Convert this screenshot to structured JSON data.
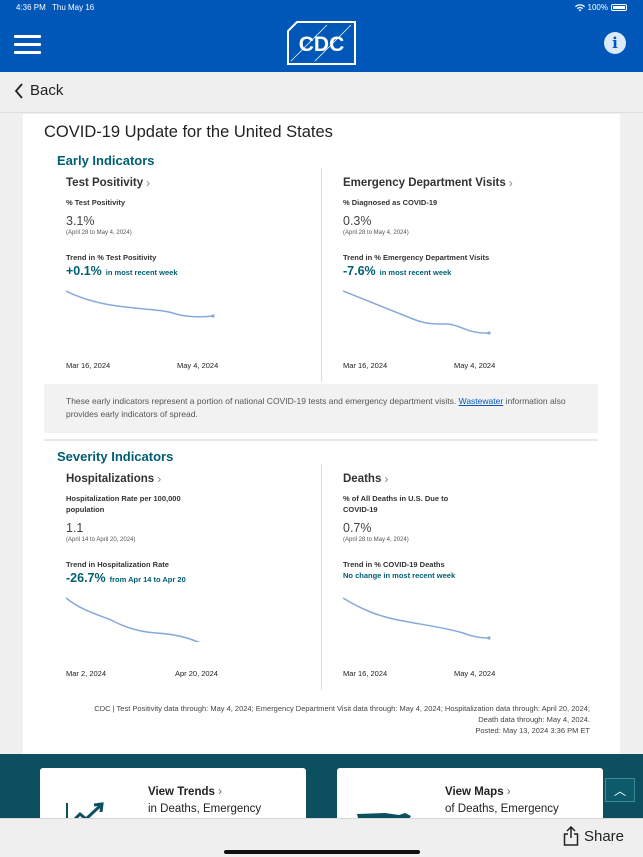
{
  "status": {
    "time": "4:36 PM",
    "date": "Thu May 16",
    "battery": "100%"
  },
  "header": {
    "logo_text": "CDC"
  },
  "nav": {
    "back_label": "Back"
  },
  "page": {
    "title": "COVID-19 Update for the United States"
  },
  "early": {
    "title": "Early Indicators",
    "test_positivity": {
      "title": "Test Positivity",
      "metric_label": "% Test Positivity",
      "value": "3.1%",
      "date_range": "(April 28 to May 4, 2024)",
      "trend_label": "Trend in % Test Positivity",
      "trend_value": "+0.1%",
      "trend_note": "in most recent week",
      "axis_start": "Mar 16, 2024",
      "axis_end": "May 4, 2024"
    },
    "ed_visits": {
      "title": "Emergency Department Visits",
      "metric_label": "% Diagnosed as COVID-19",
      "value": "0.3%",
      "date_range": "(April 28 to May 4, 2024)",
      "trend_label": "Trend in % Emergency Department Visits",
      "trend_value": "-7.6%",
      "trend_note": "in most recent week",
      "axis_start": "Mar 16, 2024",
      "axis_end": "May 4, 2024"
    },
    "note_text": "These early indicators represent a portion of national COVID-19 tests and emergency department visits.",
    "note_link": "Wastewater",
    "note_text_2": "information also provides early indicators of spread."
  },
  "severity": {
    "title": "Severity Indicators",
    "hospitalizations": {
      "title": "Hospitalizations",
      "metric_label": "Hospitalization Rate per 100,000 population",
      "value": "1.1",
      "date_range": "(April 14 to April 20, 2024)",
      "trend_label": "Trend in Hospitalization Rate",
      "trend_value": "-26.7%",
      "trend_note": "from Apr 14 to Apr 20",
      "axis_start": "Mar 2, 2024",
      "axis_end": "Apr 20, 2024"
    },
    "deaths": {
      "title": "Deaths",
      "metric_label": "% of All Deaths in U.S. Due to COVID-19",
      "value": "0.7%",
      "date_range": "(April 28 to May 4, 2024)",
      "trend_label": "Trend in % COVID-19 Deaths",
      "trend_note": "No change in most recent week",
      "axis_start": "Mar 16, 2024",
      "axis_end": "May 4, 2024"
    }
  },
  "footnote": {
    "line1": "CDC | Test Positivity data through: May 4, 2024; Emergency Department Visit data through: May 4, 2024; Hospitalization data through: April 20, 2024;",
    "line2": "Death data through: May 4, 2024.",
    "line3": "Posted: May 13, 2024 3:36 PM ET"
  },
  "cards": {
    "trends": {
      "title": "View Trends",
      "subtitle": "in Deaths, Emergency"
    },
    "maps": {
      "title": "View Maps",
      "subtitle": "of Deaths, Emergency"
    }
  },
  "bottom": {
    "share_label": "Share"
  },
  "colors": {
    "header": "#0057b7",
    "accent": "#005e73",
    "spark": "#86a9dc",
    "teal": "#0c4f5e"
  }
}
